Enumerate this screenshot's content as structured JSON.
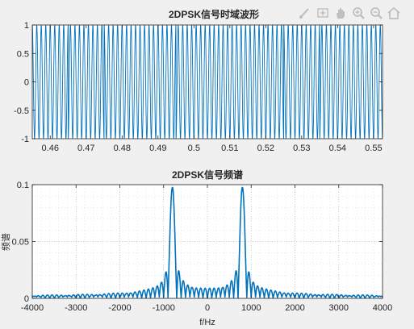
{
  "toolbar": {
    "icons": [
      "brush-icon",
      "data-cursor-icon",
      "pan-hand-icon",
      "zoom-in-icon",
      "zoom-out-icon",
      "home-icon"
    ],
    "color": "#bfbfbf"
  },
  "chart_data": [
    {
      "type": "line",
      "title": "2DPSK信号时域波形",
      "xlabel": "",
      "ylabel": "",
      "xlim": [
        0.455,
        0.5525
      ],
      "ylim": [
        -1,
        1
      ],
      "xticks": [
        "0.46",
        "0.47",
        "0.48",
        "0.49",
        "0.5",
        "0.51",
        "0.52",
        "0.53",
        "0.54",
        "0.55"
      ],
      "yticks": [
        "-1",
        "-0.5",
        "0",
        "0.5",
        "1"
      ],
      "grid": false,
      "series": [
        {
          "kind": "sinusoid",
          "frequency_hz": 800,
          "amplitude": 1,
          "symbol_rate": 100,
          "color": "#0072bd"
        }
      ]
    },
    {
      "type": "line",
      "title": "2DPSK信号频谱",
      "xlabel": "f/Hz",
      "ylabel": "频谱",
      "xlim": [
        -4000,
        4000
      ],
      "ylim": [
        0,
        0.1
      ],
      "xticks": [
        "-4000",
        "-3000",
        "-2000",
        "-1000",
        "0",
        "1000",
        "2000",
        "3000",
        "4000"
      ],
      "yticks": [
        "0",
        "0.05",
        "0.1"
      ],
      "grid": true,
      "series": [
        {
          "kind": "spectrum",
          "peak_frequencies_hz": [
            -800,
            800
          ],
          "peak_value": 0.097,
          "color": "#0072bd"
        }
      ]
    }
  ]
}
